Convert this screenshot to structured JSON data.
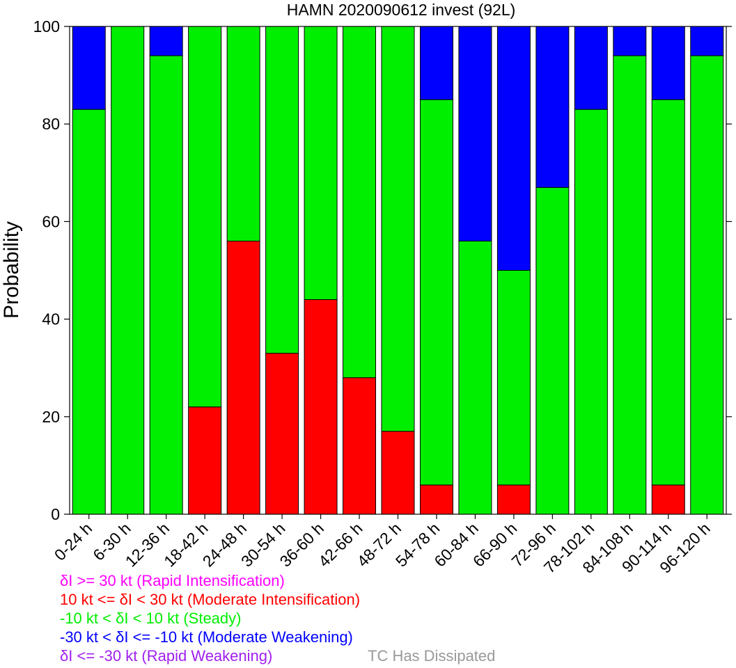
{
  "chart_data": {
    "type": "bar",
    "stacked": true,
    "title": "HAMN 2020090612 invest (92L)",
    "ylabel": "Probability",
    "xlabel": "",
    "ylim": [
      0,
      100
    ],
    "yticks": [
      "0",
      "20",
      "40",
      "60",
      "80",
      "100"
    ],
    "categories": [
      "0-24 h",
      "6-30 h",
      "12-36 h",
      "18-42 h",
      "24-48 h",
      "30-54 h",
      "36-60 h",
      "42-66 h",
      "48-72 h",
      "54-78 h",
      "60-84 h",
      "66-90 h",
      "72-96 h",
      "78-102 h",
      "84-108 h",
      "90-114 h",
      "96-120 h"
    ],
    "series": [
      {
        "color": "#ff00ff",
        "values": [
          0,
          0,
          0,
          0,
          0,
          0,
          0,
          0,
          0,
          0,
          0,
          0,
          0,
          0,
          0,
          0,
          0
        ]
      },
      {
        "color": "#ff0000",
        "values": [
          0,
          0,
          0,
          22,
          56,
          33,
          44,
          28,
          17,
          6,
          0,
          6,
          0,
          0,
          0,
          6,
          0
        ]
      },
      {
        "color": "#00ee00",
        "values": [
          83,
          100,
          94,
          78,
          44,
          67,
          56,
          72,
          83,
          79,
          56,
          44,
          67,
          83,
          94,
          79,
          94
        ]
      },
      {
        "color": "#0000ff",
        "values": [
          17,
          0,
          6,
          0,
          0,
          0,
          0,
          0,
          0,
          15,
          44,
          50,
          33,
          17,
          6,
          15,
          6
        ]
      },
      {
        "color": "#a020f0",
        "values": [
          0,
          0,
          0,
          0,
          0,
          0,
          0,
          0,
          0,
          0,
          0,
          0,
          0,
          0,
          0,
          0,
          0
        ]
      }
    ]
  },
  "legend": {
    "entries": [
      {
        "text": "δI >= 30 kt (Rapid Intensification)",
        "color": "#ff00ff"
      },
      {
        "text": "10 kt <= δI < 30 kt (Moderate Intensification)",
        "color": "#ff0000"
      },
      {
        "text": "-10 kt < δI < 10 kt (Steady)",
        "color": "#00ee00"
      },
      {
        "text": "-30 kt < δI <= -10 kt (Moderate Weakening)",
        "color": "#0000ff"
      },
      {
        "text": "δI <= -30 kt (Rapid Weakening)",
        "color": "#a020f0"
      }
    ],
    "dissipated": {
      "text": "TC Has Dissipated",
      "color": "#999999"
    }
  }
}
